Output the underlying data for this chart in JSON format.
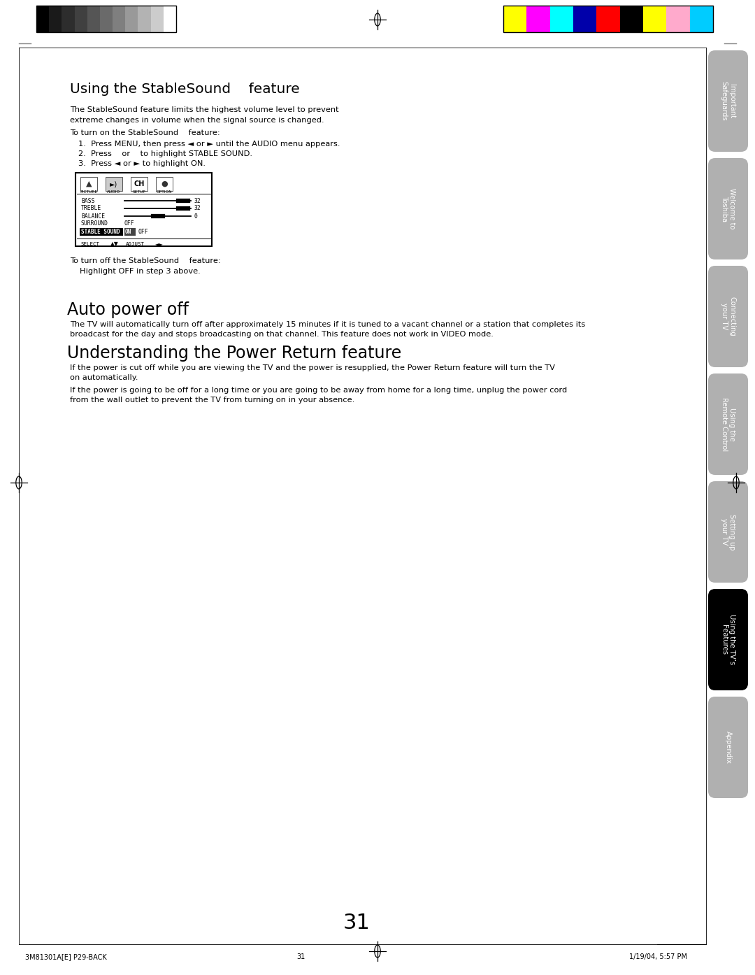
{
  "page_number": "31",
  "background_color": "#ffffff",
  "tab_labels": [
    "Important\nSafeguards",
    "Welcome to\nToshiba",
    "Connecting\nyour TV",
    "Using the\nRemote Control",
    "Setting up\nyour TV",
    "Using the TV’s\nFeatures",
    "Appendix"
  ],
  "tab_active_index": 5,
  "tab_active_color": "#000000",
  "tab_inactive_color": "#b0b0b0",
  "tab_text_color_active": "#ffffff",
  "tab_text_color_inactive": "#ffffff",
  "section1_title": "Using the StableSound    feature",
  "section1_body1a": "The StableSound feature limits the highest volume level to prevent",
  "section1_body1b": "extreme changes in volume when the signal source is changed.",
  "section1_body2": "To turn on the StableSound    feature:",
  "section1_step1": "1.  Press MENU, then press ◄ or ► until the AUDIO menu appears.",
  "section1_step2": "2.  Press    or    to highlight STABLE SOUND.",
  "section1_step3": "3.  Press ◄ or ► to highlight ON.",
  "section1_turnoff1": "To turn off the StableSound    feature:",
  "section1_turnoff2": "  Highlight OFF in step 3 above.",
  "section2_title": "Auto power off",
  "section2_body1": "The TV will automatically turn off after approximately 15 minutes if it is tuned to a vacant channel or a station that completes its",
  "section2_body2": "broadcast for the day and stops broadcasting on that channel. This feature does not work in VIDEO mode.",
  "section3_title": "Understanding the Power Return feature",
  "section3_body1a": "If the power is cut off while you are viewing the TV and the power is resupplied, the Power Return feature will turn the TV",
  "section3_body1b": "on automatically.",
  "section3_body2a": "If the power is going to be off for a long time or you are going to be away from home for a long time, unplug the power cord",
  "section3_body2b": "from the wall outlet to prevent the TV from turning on in your absence.",
  "footer_left": "3M81301A[E] P29-BACK",
  "footer_center": "31",
  "footer_right": "1/19/04, 5:57 PM",
  "gs_colors": [
    "#000000",
    "#1a1a1a",
    "#2d2d2d",
    "#404040",
    "#555555",
    "#6a6a6a",
    "#7f7f7f",
    "#999999",
    "#b3b3b3",
    "#cccccc",
    "#ffffff"
  ],
  "cb_colors": [
    "#ffff00",
    "#ff00ff",
    "#00ffff",
    "#0000aa",
    "#ff0000",
    "#000000",
    "#ffff00",
    "#ffaacc",
    "#00ccff"
  ]
}
